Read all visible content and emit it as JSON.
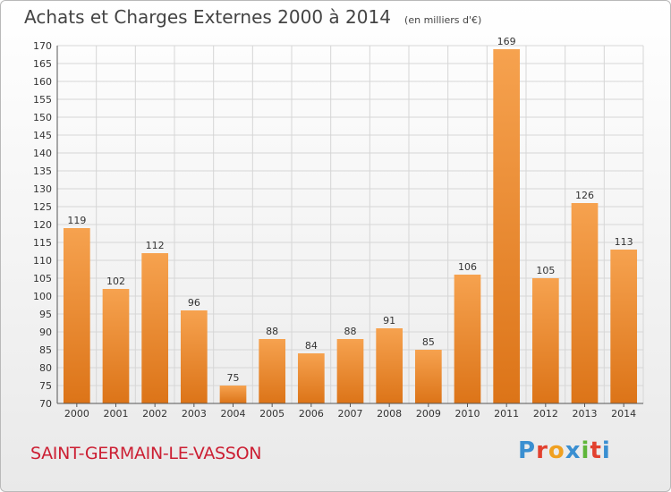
{
  "header": {
    "title": "Achats et Charges Externes 2000 à 2014",
    "unit": "(en milliers d'€)"
  },
  "footer": {
    "town": "SAINT-GERMAIN-LE-VASSON",
    "brand": "Proxiti"
  },
  "colors": {
    "bar_top": "#f6a24f",
    "bar_bottom": "#dc7418",
    "grid": "#d6d6d6",
    "town": "#cc1f33",
    "brand_letters": [
      "#3a8fd1",
      "#e2412f",
      "#f0a020",
      "#3a8fd1",
      "#5fb63a",
      "#e2412f",
      "#3a8fd1"
    ]
  },
  "chart_data": {
    "type": "bar",
    "title": "Achats et Charges Externes 2000 à 2014",
    "subtitle": "(en milliers d'€)",
    "xlabel": "",
    "ylabel": "",
    "categories": [
      "2000",
      "2001",
      "2002",
      "2003",
      "2004",
      "2005",
      "2006",
      "2007",
      "2008",
      "2009",
      "2010",
      "2011",
      "2012",
      "2013",
      "2014"
    ],
    "values": [
      119,
      102,
      112,
      96,
      75,
      88,
      84,
      88,
      91,
      85,
      106,
      169,
      105,
      126,
      113
    ],
    "ylim": [
      70,
      170
    ],
    "yticks": [
      70,
      75,
      80,
      85,
      90,
      95,
      100,
      105,
      110,
      115,
      120,
      125,
      130,
      135,
      140,
      145,
      150,
      155,
      160,
      165,
      170
    ],
    "grid": true,
    "data_labels": true
  }
}
